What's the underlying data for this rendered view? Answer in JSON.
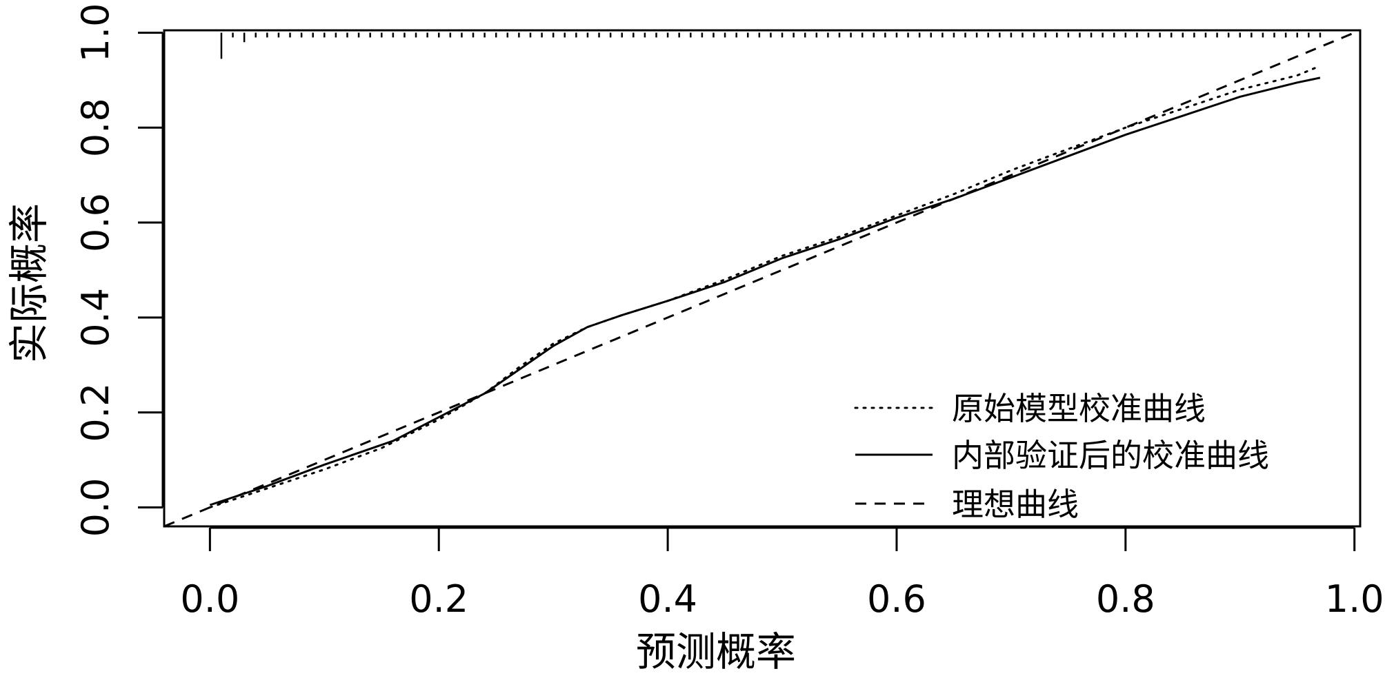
{
  "chart_data": {
    "type": "line",
    "title": "",
    "xlabel": "预测概率",
    "ylabel": "实际概率",
    "xlim": [
      -0.04,
      1.005
    ],
    "ylim": [
      -0.04,
      1.005
    ],
    "x_ticks": [
      0.0,
      0.2,
      0.4,
      0.6,
      0.8,
      1.0
    ],
    "x_tick_labels": [
      "0.0",
      "0.2",
      "0.4",
      "0.6",
      "0.8",
      "1.0"
    ],
    "y_ticks": [
      0.0,
      0.2,
      0.4,
      0.6,
      0.8,
      1.0
    ],
    "y_tick_labels": [
      "0.0",
      "0.2",
      "0.4",
      "0.6",
      "0.8",
      "1.0"
    ],
    "grid": false,
    "legend_position": "bottom-right",
    "rug_y": 1.0,
    "rug_x": [
      0.01,
      0.02,
      0.03,
      0.04,
      0.05,
      0.06,
      0.07,
      0.08,
      0.09,
      0.1,
      0.11,
      0.12,
      0.13,
      0.14,
      0.15,
      0.16,
      0.17,
      0.18,
      0.19,
      0.2,
      0.21,
      0.22,
      0.23,
      0.24,
      0.25,
      0.26,
      0.27,
      0.28,
      0.29,
      0.3,
      0.31,
      0.32,
      0.33,
      0.34,
      0.35,
      0.36,
      0.37,
      0.38,
      0.39,
      0.4,
      0.41,
      0.42,
      0.43,
      0.44,
      0.45,
      0.46,
      0.47,
      0.48,
      0.49,
      0.5,
      0.51,
      0.52,
      0.53,
      0.54,
      0.55,
      0.56,
      0.57,
      0.58,
      0.59,
      0.6,
      0.61,
      0.62,
      0.63,
      0.64,
      0.65,
      0.66,
      0.67,
      0.68,
      0.69,
      0.7,
      0.71,
      0.72,
      0.73,
      0.74,
      0.75,
      0.76,
      0.77,
      0.78,
      0.79,
      0.8,
      0.81,
      0.82,
      0.83,
      0.84,
      0.85,
      0.86,
      0.87,
      0.88,
      0.89,
      0.9,
      0.91,
      0.92,
      0.93,
      0.94,
      0.95,
      0.96,
      0.97
    ],
    "rug_heights": [
      0.055,
      0.01,
      0.02,
      0.01,
      0.01,
      0.01,
      0.01,
      0.01,
      0.01,
      0.01,
      0.01,
      0.01,
      0.01,
      0.01,
      0.01,
      0.01,
      0.01,
      0.01,
      0.01,
      0.01,
      0.01,
      0.01,
      0.01,
      0.01,
      0.01,
      0.01,
      0.01,
      0.01,
      0.01,
      0.01,
      0.01,
      0.01,
      0.01,
      0.01,
      0.01,
      0.01,
      0.01,
      0.01,
      0.01,
      0.01,
      0.01,
      0.01,
      0.01,
      0.01,
      0.01,
      0.01,
      0.01,
      0.01,
      0.01,
      0.01,
      0.01,
      0.01,
      0.01,
      0.01,
      0.01,
      0.01,
      0.01,
      0.01,
      0.01,
      0.01,
      0.01,
      0.01,
      0.01,
      0.01,
      0.01,
      0.01,
      0.01,
      0.01,
      0.01,
      0.01,
      0.01,
      0.01,
      0.01,
      0.01,
      0.01,
      0.01,
      0.01,
      0.01,
      0.01,
      0.01,
      0.01,
      0.01,
      0.01,
      0.01,
      0.01,
      0.01,
      0.01,
      0.01,
      0.01,
      0.01,
      0.01,
      0.01,
      0.01,
      0.01,
      0.01,
      0.01,
      0.01
    ],
    "series": [
      {
        "name": "原始模型校准曲线",
        "style": "dotted",
        "color": "#000000",
        "x": [
          0.0,
          0.05,
          0.1,
          0.15,
          0.2,
          0.24,
          0.27,
          0.3,
          0.33,
          0.36,
          0.4,
          0.45,
          0.5,
          0.55,
          0.6,
          0.65,
          0.7,
          0.75,
          0.8,
          0.85,
          0.9,
          0.95,
          0.97
        ],
        "y": [
          0.0,
          0.04,
          0.08,
          0.125,
          0.185,
          0.24,
          0.295,
          0.345,
          0.38,
          0.405,
          0.435,
          0.48,
          0.53,
          0.57,
          0.615,
          0.66,
          0.71,
          0.755,
          0.8,
          0.84,
          0.88,
          0.91,
          0.93
        ]
      },
      {
        "name": "内部验证后的校准曲线",
        "style": "solid",
        "color": "#000000",
        "x": [
          0.0,
          0.05,
          0.1,
          0.16,
          0.2,
          0.24,
          0.27,
          0.3,
          0.33,
          0.36,
          0.4,
          0.45,
          0.5,
          0.55,
          0.6,
          0.65,
          0.7,
          0.75,
          0.8,
          0.85,
          0.9,
          0.95,
          0.97
        ],
        "y": [
          0.005,
          0.045,
          0.09,
          0.14,
          0.19,
          0.24,
          0.29,
          0.34,
          0.38,
          0.405,
          0.435,
          0.475,
          0.525,
          0.565,
          0.61,
          0.65,
          0.695,
          0.74,
          0.785,
          0.825,
          0.865,
          0.895,
          0.905
        ]
      },
      {
        "name": "理想曲线",
        "style": "dashed",
        "color": "#000000",
        "x": [
          -0.04,
          1.005
        ],
        "y": [
          -0.04,
          1.005
        ]
      }
    ]
  }
}
